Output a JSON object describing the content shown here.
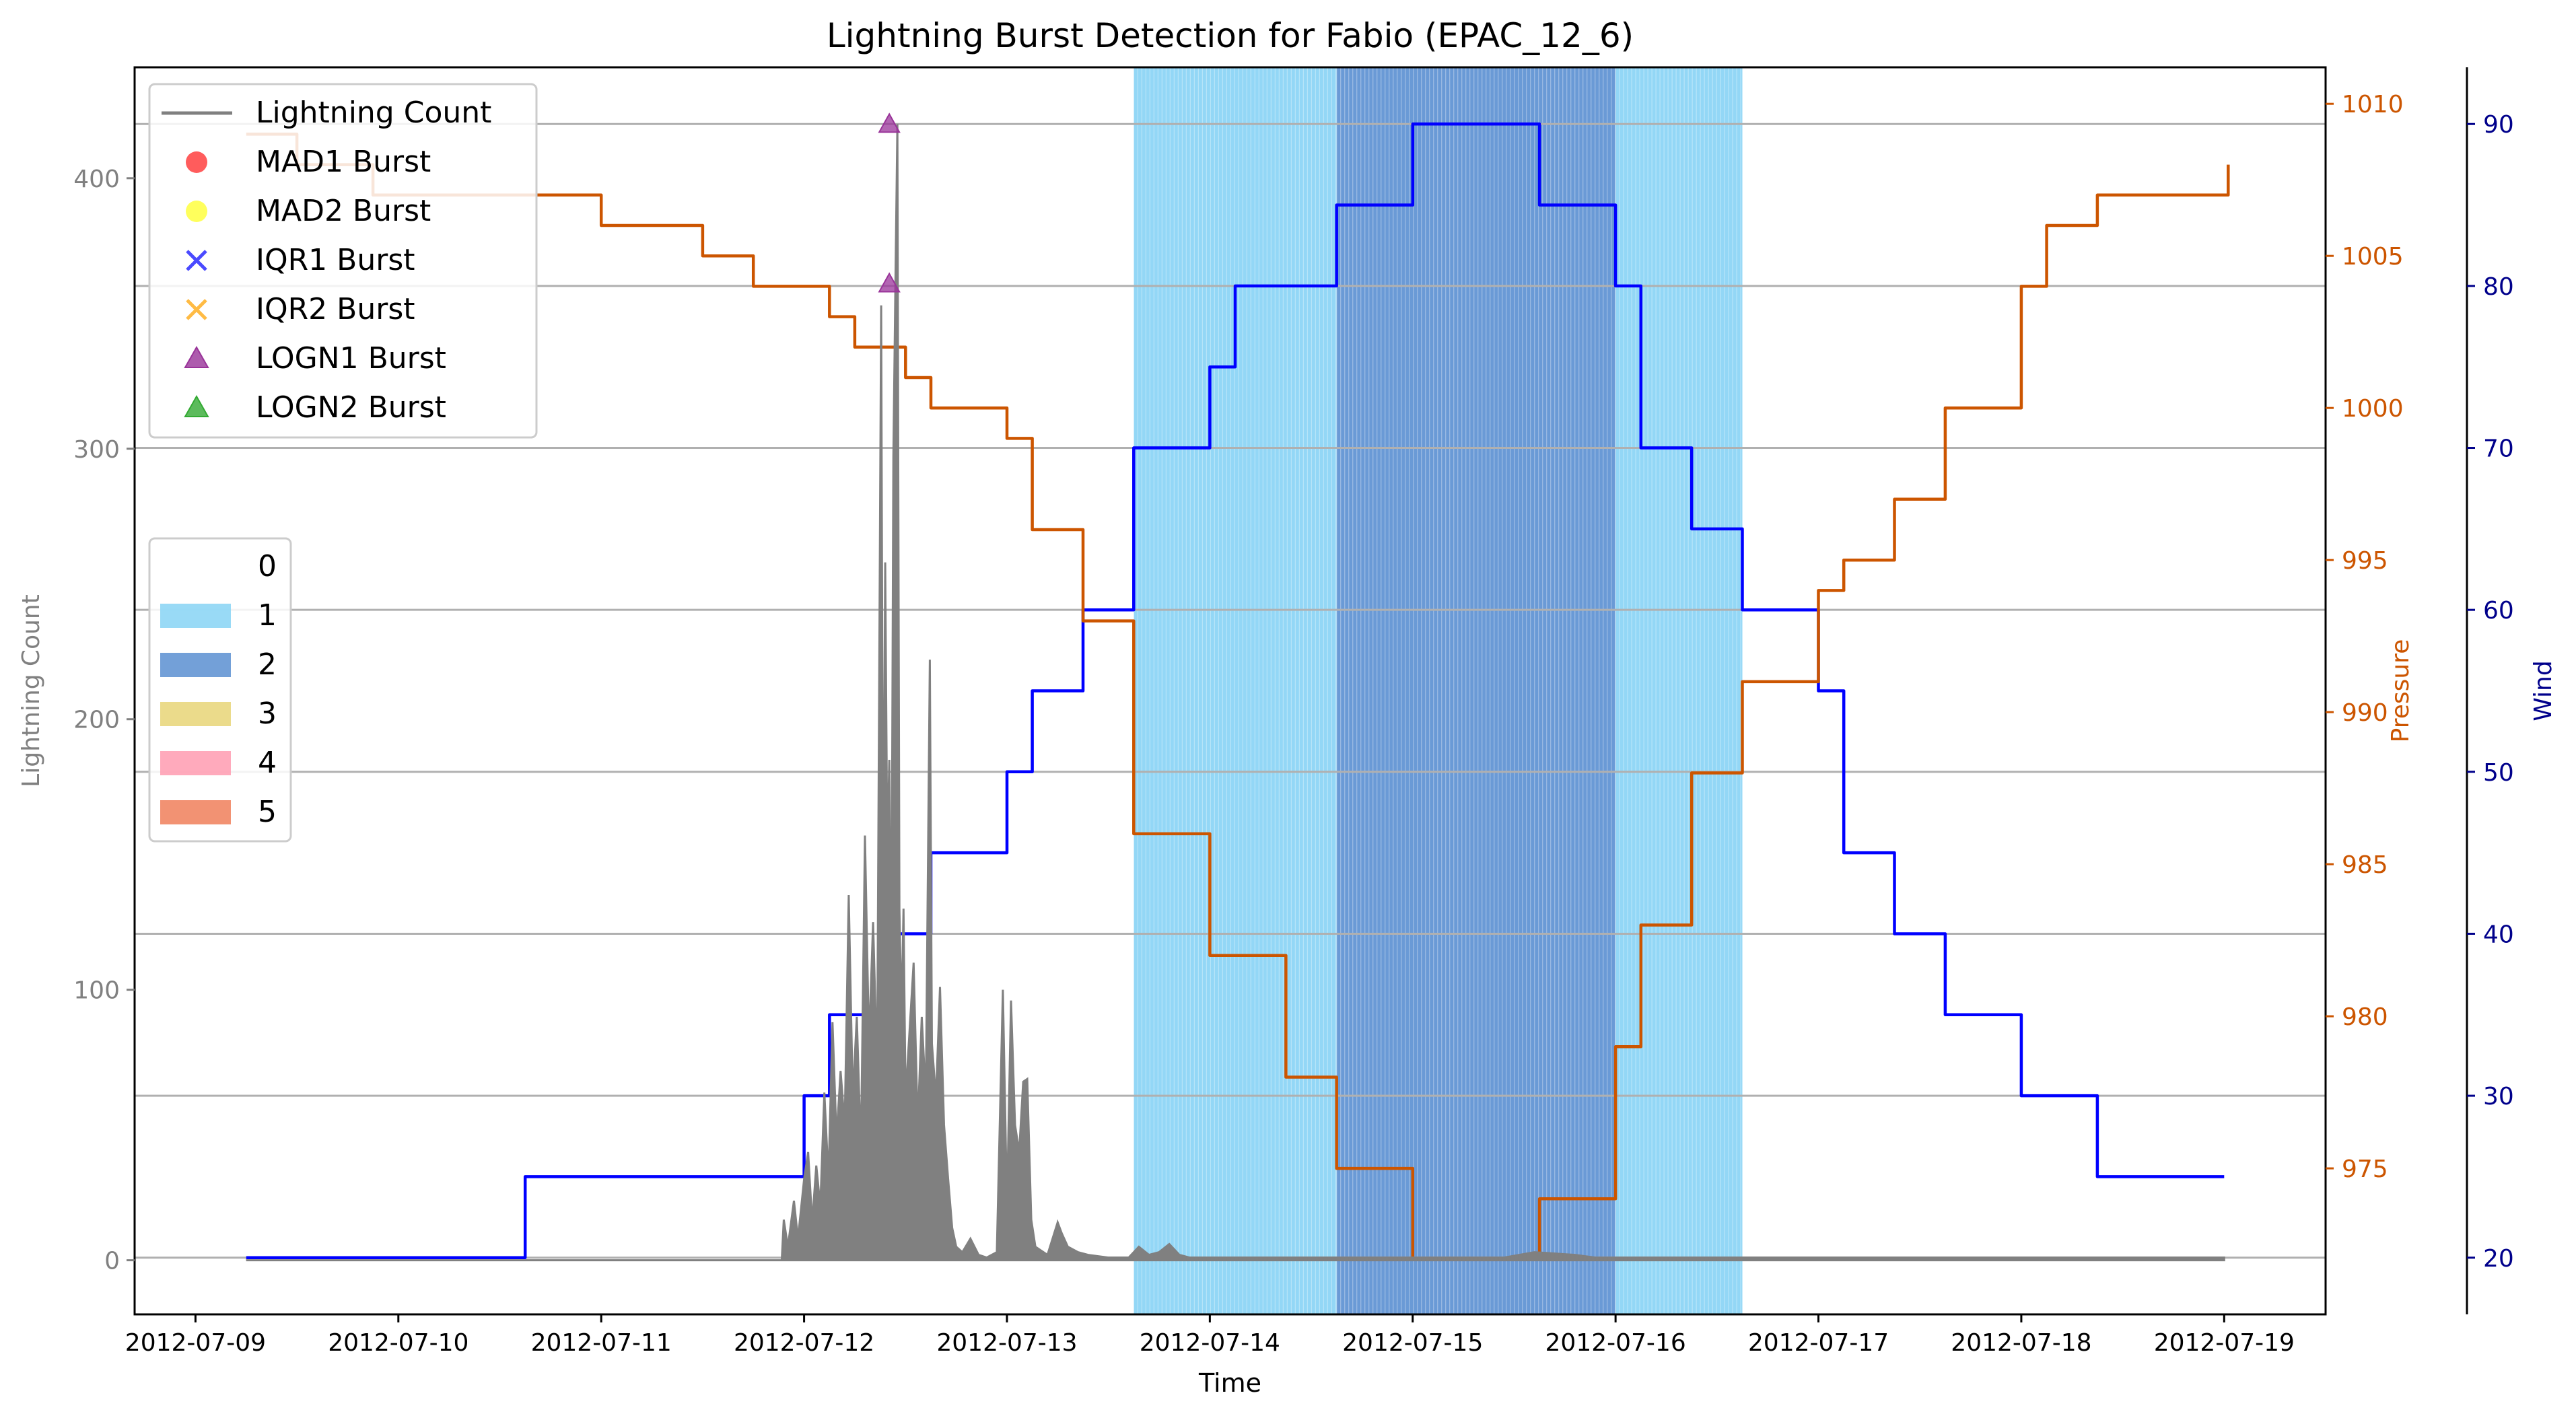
{
  "chart_data": {
    "type": "line",
    "title": "Lightning Burst Detection for Fabio (EPAC_12_6)",
    "xlabel": "Time",
    "x_ticks": [
      "2012-07-09",
      "2012-07-10",
      "2012-07-11",
      "2012-07-12",
      "2012-07-13",
      "2012-07-14",
      "2012-07-15",
      "2012-07-16",
      "2012-07-17",
      "2012-07-18",
      "2012-07-19"
    ],
    "xlim": [
      -0.3,
      10.5
    ],
    "x_units": "days since 2012-07-09 00:00",
    "axes": {
      "lightning": {
        "label": "Lightning Count",
        "color": "#808080",
        "ylim": [
          -20,
          441
        ],
        "ticks": [
          0,
          100,
          200,
          300,
          400
        ]
      },
      "pressure": {
        "label": "Pressure",
        "color": "#cc5500",
        "ylim": [
          970.2,
          1011.2
        ],
        "ticks": [
          975,
          980,
          985,
          990,
          995,
          1000,
          1005,
          1010
        ]
      },
      "wind": {
        "label": "Wind",
        "color": "#00008b",
        "ylim": [
          16.5,
          93.5
        ],
        "ticks": [
          20,
          30,
          40,
          50,
          60,
          70,
          80,
          90
        ]
      }
    },
    "grid": "horizontal",
    "category_bands": [
      {
        "category": 1,
        "start": 4.625,
        "end": 5.625
      },
      {
        "category": 2,
        "start": 5.625,
        "end": 7.0
      },
      {
        "category": 1,
        "start": 7.0,
        "end": 7.625
      }
    ],
    "series": [
      {
        "name": "Wind",
        "axis": "wind",
        "color": "#0000ff",
        "step": true,
        "points": [
          [
            0.25,
            20
          ],
          [
            1.375,
            20
          ],
          [
            1.625,
            25
          ],
          [
            2.875,
            25
          ],
          [
            3.0,
            30
          ],
          [
            3.125,
            35
          ],
          [
            3.375,
            40
          ],
          [
            3.625,
            45
          ],
          [
            4.0,
            50
          ],
          [
            4.125,
            55
          ],
          [
            4.375,
            60
          ],
          [
            4.625,
            70
          ],
          [
            5.0,
            75
          ],
          [
            5.125,
            80
          ],
          [
            5.625,
            85
          ],
          [
            6.0,
            90
          ],
          [
            6.625,
            85
          ],
          [
            7.0,
            80
          ],
          [
            7.125,
            70
          ],
          [
            7.375,
            65
          ],
          [
            7.625,
            60
          ],
          [
            8.0,
            55
          ],
          [
            8.125,
            45
          ],
          [
            8.375,
            40
          ],
          [
            8.625,
            35
          ],
          [
            9.0,
            30
          ],
          [
            9.375,
            25
          ],
          [
            10.0,
            25
          ]
        ]
      },
      {
        "name": "Pressure",
        "axis": "pressure",
        "color": "#cc5500",
        "step": true,
        "points": [
          [
            0.25,
            1009
          ],
          [
            0.375,
            1009
          ],
          [
            0.5,
            1008
          ],
          [
            0.625,
            1008
          ],
          [
            0.875,
            1007
          ],
          [
            1.875,
            1007
          ],
          [
            2.0,
            1006
          ],
          [
            2.375,
            1006
          ],
          [
            2.5,
            1005
          ],
          [
            2.625,
            1005
          ],
          [
            2.75,
            1004
          ],
          [
            3.0,
            1004
          ],
          [
            3.125,
            1003
          ],
          [
            3.25,
            1002
          ],
          [
            3.5,
            1001
          ],
          [
            3.625,
            1000
          ],
          [
            4.0,
            999
          ],
          [
            4.125,
            996
          ],
          [
            4.375,
            993
          ],
          [
            4.625,
            986
          ],
          [
            5.0,
            982
          ],
          [
            5.375,
            978
          ],
          [
            5.625,
            975
          ],
          [
            6.0,
            972
          ],
          [
            6.625,
            974
          ],
          [
            7.0,
            979
          ],
          [
            7.125,
            983
          ],
          [
            7.375,
            988
          ],
          [
            7.625,
            991
          ],
          [
            8.0,
            994
          ],
          [
            8.125,
            995
          ],
          [
            8.375,
            997
          ],
          [
            8.625,
            1000
          ],
          [
            9.0,
            1004
          ],
          [
            9.125,
            1006
          ],
          [
            9.375,
            1007
          ],
          [
            10.0,
            1007
          ],
          [
            10.02,
            1008
          ]
        ]
      },
      {
        "name": "Lightning Count",
        "axis": "lightning",
        "color": "#808080",
        "points": [
          [
            0.25,
            0
          ],
          [
            2.89,
            0
          ],
          [
            2.9,
            15
          ],
          [
            2.92,
            5
          ],
          [
            2.95,
            22
          ],
          [
            2.97,
            8
          ],
          [
            3.0,
            30
          ],
          [
            3.02,
            40
          ],
          [
            3.04,
            14
          ],
          [
            3.06,
            35
          ],
          [
            3.08,
            20
          ],
          [
            3.1,
            62
          ],
          [
            3.12,
            30
          ],
          [
            3.14,
            88
          ],
          [
            3.16,
            45
          ],
          [
            3.18,
            70
          ],
          [
            3.2,
            50
          ],
          [
            3.22,
            135
          ],
          [
            3.24,
            60
          ],
          [
            3.26,
            90
          ],
          [
            3.28,
            40
          ],
          [
            3.3,
            157
          ],
          [
            3.32,
            80
          ],
          [
            3.34,
            125
          ],
          [
            3.36,
            70
          ],
          [
            3.38,
            353
          ],
          [
            3.39,
            120
          ],
          [
            3.4,
            258
          ],
          [
            3.41,
            150
          ],
          [
            3.42,
            185
          ],
          [
            3.43,
            100
          ],
          [
            3.44,
            297
          ],
          [
            3.45,
            360
          ],
          [
            3.46,
            420
          ],
          [
            3.47,
            130
          ],
          [
            3.48,
            90
          ],
          [
            3.49,
            130
          ],
          [
            3.5,
            60
          ],
          [
            3.52,
            85
          ],
          [
            3.54,
            110
          ],
          [
            3.56,
            50
          ],
          [
            3.58,
            90
          ],
          [
            3.6,
            60
          ],
          [
            3.62,
            222
          ],
          [
            3.63,
            80
          ],
          [
            3.65,
            60
          ],
          [
            3.67,
            101
          ],
          [
            3.69,
            50
          ],
          [
            3.71,
            30
          ],
          [
            3.73,
            12
          ],
          [
            3.75,
            5
          ],
          [
            3.78,
            3
          ],
          [
            3.82,
            8
          ],
          [
            3.86,
            2
          ],
          [
            3.9,
            1
          ],
          [
            3.95,
            3
          ],
          [
            3.98,
            100
          ],
          [
            4.0,
            20
          ],
          [
            4.02,
            96
          ],
          [
            4.04,
            50
          ],
          [
            4.06,
            40
          ],
          [
            4.08,
            66
          ],
          [
            4.1,
            67
          ],
          [
            4.12,
            15
          ],
          [
            4.14,
            5
          ],
          [
            4.2,
            2
          ],
          [
            4.25,
            14
          ],
          [
            4.27,
            10
          ],
          [
            4.3,
            5
          ],
          [
            4.35,
            3
          ],
          [
            4.4,
            2
          ],
          [
            4.5,
            1
          ],
          [
            4.6,
            1
          ],
          [
            4.65,
            5
          ],
          [
            4.7,
            2
          ],
          [
            4.75,
            3
          ],
          [
            4.8,
            6
          ],
          [
            4.85,
            2
          ],
          [
            4.9,
            1
          ],
          [
            6.45,
            1
          ],
          [
            6.6,
            3
          ],
          [
            6.8,
            2
          ],
          [
            6.9,
            1
          ],
          [
            8.7,
            1
          ],
          [
            10.0,
            1
          ]
        ]
      }
    ],
    "bursts": [
      {
        "type": "LOGN1",
        "x": 3.42,
        "y": 420
      },
      {
        "type": "LOGN1",
        "x": 3.42,
        "y": 361
      }
    ],
    "legend1": {
      "placement": "top-left",
      "entries": [
        {
          "label": "Lightning Count",
          "marker": "line",
          "color": "#808080"
        },
        {
          "label": "MAD1 Burst",
          "marker": "circle",
          "color": "#ff3333"
        },
        {
          "label": "MAD2 Burst",
          "marker": "circle",
          "color": "#ffff33"
        },
        {
          "label": "IQR1 Burst",
          "marker": "x",
          "color": "#4a4aff"
        },
        {
          "label": "IQR2 Burst",
          "marker": "x",
          "color": "#ffbb44"
        },
        {
          "label": "LOGN1 Burst",
          "marker": "triangle",
          "color": "#993399"
        },
        {
          "label": "LOGN2 Burst",
          "marker": "triangle",
          "color": "#33aa33"
        }
      ]
    },
    "legend2": {
      "placement": "center-left",
      "entries": [
        {
          "label": "0",
          "color": "#ffffff"
        },
        {
          "label": "1",
          "color": "#87d3f5"
        },
        {
          "label": "2",
          "color": "#5a8fd1"
        },
        {
          "label": "3",
          "color": "#e8d577"
        },
        {
          "label": "4",
          "color": "#ff9bb0"
        },
        {
          "label": "5",
          "color": "#f07f5a"
        }
      ]
    }
  }
}
